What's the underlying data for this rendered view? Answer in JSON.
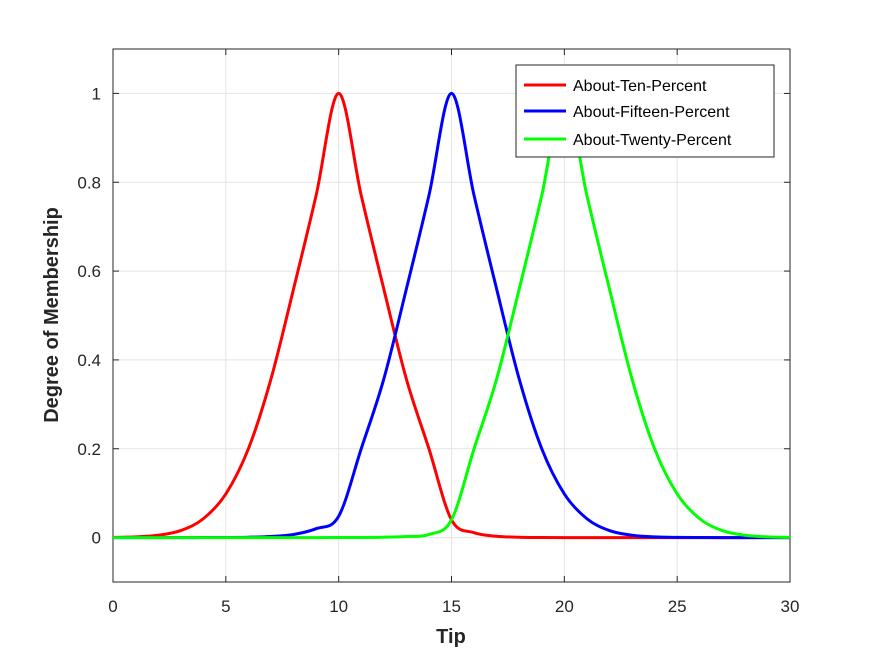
{
  "chart_data": {
    "type": "line",
    "xlabel": "Tip",
    "ylabel": "Degree of Membership",
    "xlim": [
      0,
      30
    ],
    "ylim": [
      -0.1,
      1.1
    ],
    "x_ticks": [
      0,
      5,
      10,
      15,
      20,
      25,
      30
    ],
    "y_ticks": [
      0,
      0.2,
      0.4,
      0.6,
      0.8,
      1
    ],
    "x_tick_labels": [
      "0",
      "5",
      "10",
      "15",
      "20",
      "25",
      "30"
    ],
    "y_tick_labels": [
      "0",
      "0.2",
      "0.4",
      "0.6",
      "0.8",
      "1"
    ],
    "grid": true,
    "legend_position": "top-right",
    "x": [
      0,
      1,
      2,
      3,
      4,
      5,
      6,
      7,
      8,
      9,
      10,
      11,
      12,
      13,
      14,
      15,
      16,
      17,
      18,
      19,
      20,
      21,
      22,
      23,
      24,
      25,
      26,
      27,
      28,
      29,
      30
    ],
    "series": [
      {
        "name": "About-Ten-Percent",
        "color": "#ff0000",
        "values": [
          0.0004,
          0.0015,
          0.0052,
          0.0158,
          0.0424,
          0.0984,
          0.2,
          0.357,
          0.5596,
          0.7703,
          1.0,
          0.7703,
          0.5596,
          0.357,
          0.2,
          0.04,
          0.011,
          0.003,
          0.0008,
          0.0002,
          0.0,
          0.0,
          0.0,
          0.0,
          0.0,
          0.0,
          0.0,
          0.0,
          0.0,
          0.0,
          0.0
        ]
      },
      {
        "name": "About-Fifteen-Percent",
        "color": "#0000ff",
        "values": [
          0.0,
          0.0,
          0.0,
          0.0,
          0.0001,
          0.0002,
          0.0008,
          0.0025,
          0.007,
          0.02,
          0.048,
          0.2,
          0.357,
          0.5596,
          0.7703,
          1.0,
          0.7703,
          0.5596,
          0.357,
          0.2,
          0.0984,
          0.0424,
          0.0158,
          0.0052,
          0.0015,
          0.0004,
          0.0001,
          0.0,
          0.0,
          0.0,
          0.0
        ]
      },
      {
        "name": "About-Twenty-Percent",
        "color": "#00ff00",
        "values": [
          0.0,
          0.0,
          0.0,
          0.0,
          0.0,
          0.0,
          0.0,
          0.0,
          0.0,
          0.0,
          0.0001,
          0.0002,
          0.0008,
          0.0025,
          0.007,
          0.04,
          0.2,
          0.357,
          0.5596,
          0.7703,
          1.0,
          0.7703,
          0.5596,
          0.357,
          0.2,
          0.0984,
          0.0424,
          0.0158,
          0.0052,
          0.0015,
          0.0004
        ]
      }
    ]
  }
}
